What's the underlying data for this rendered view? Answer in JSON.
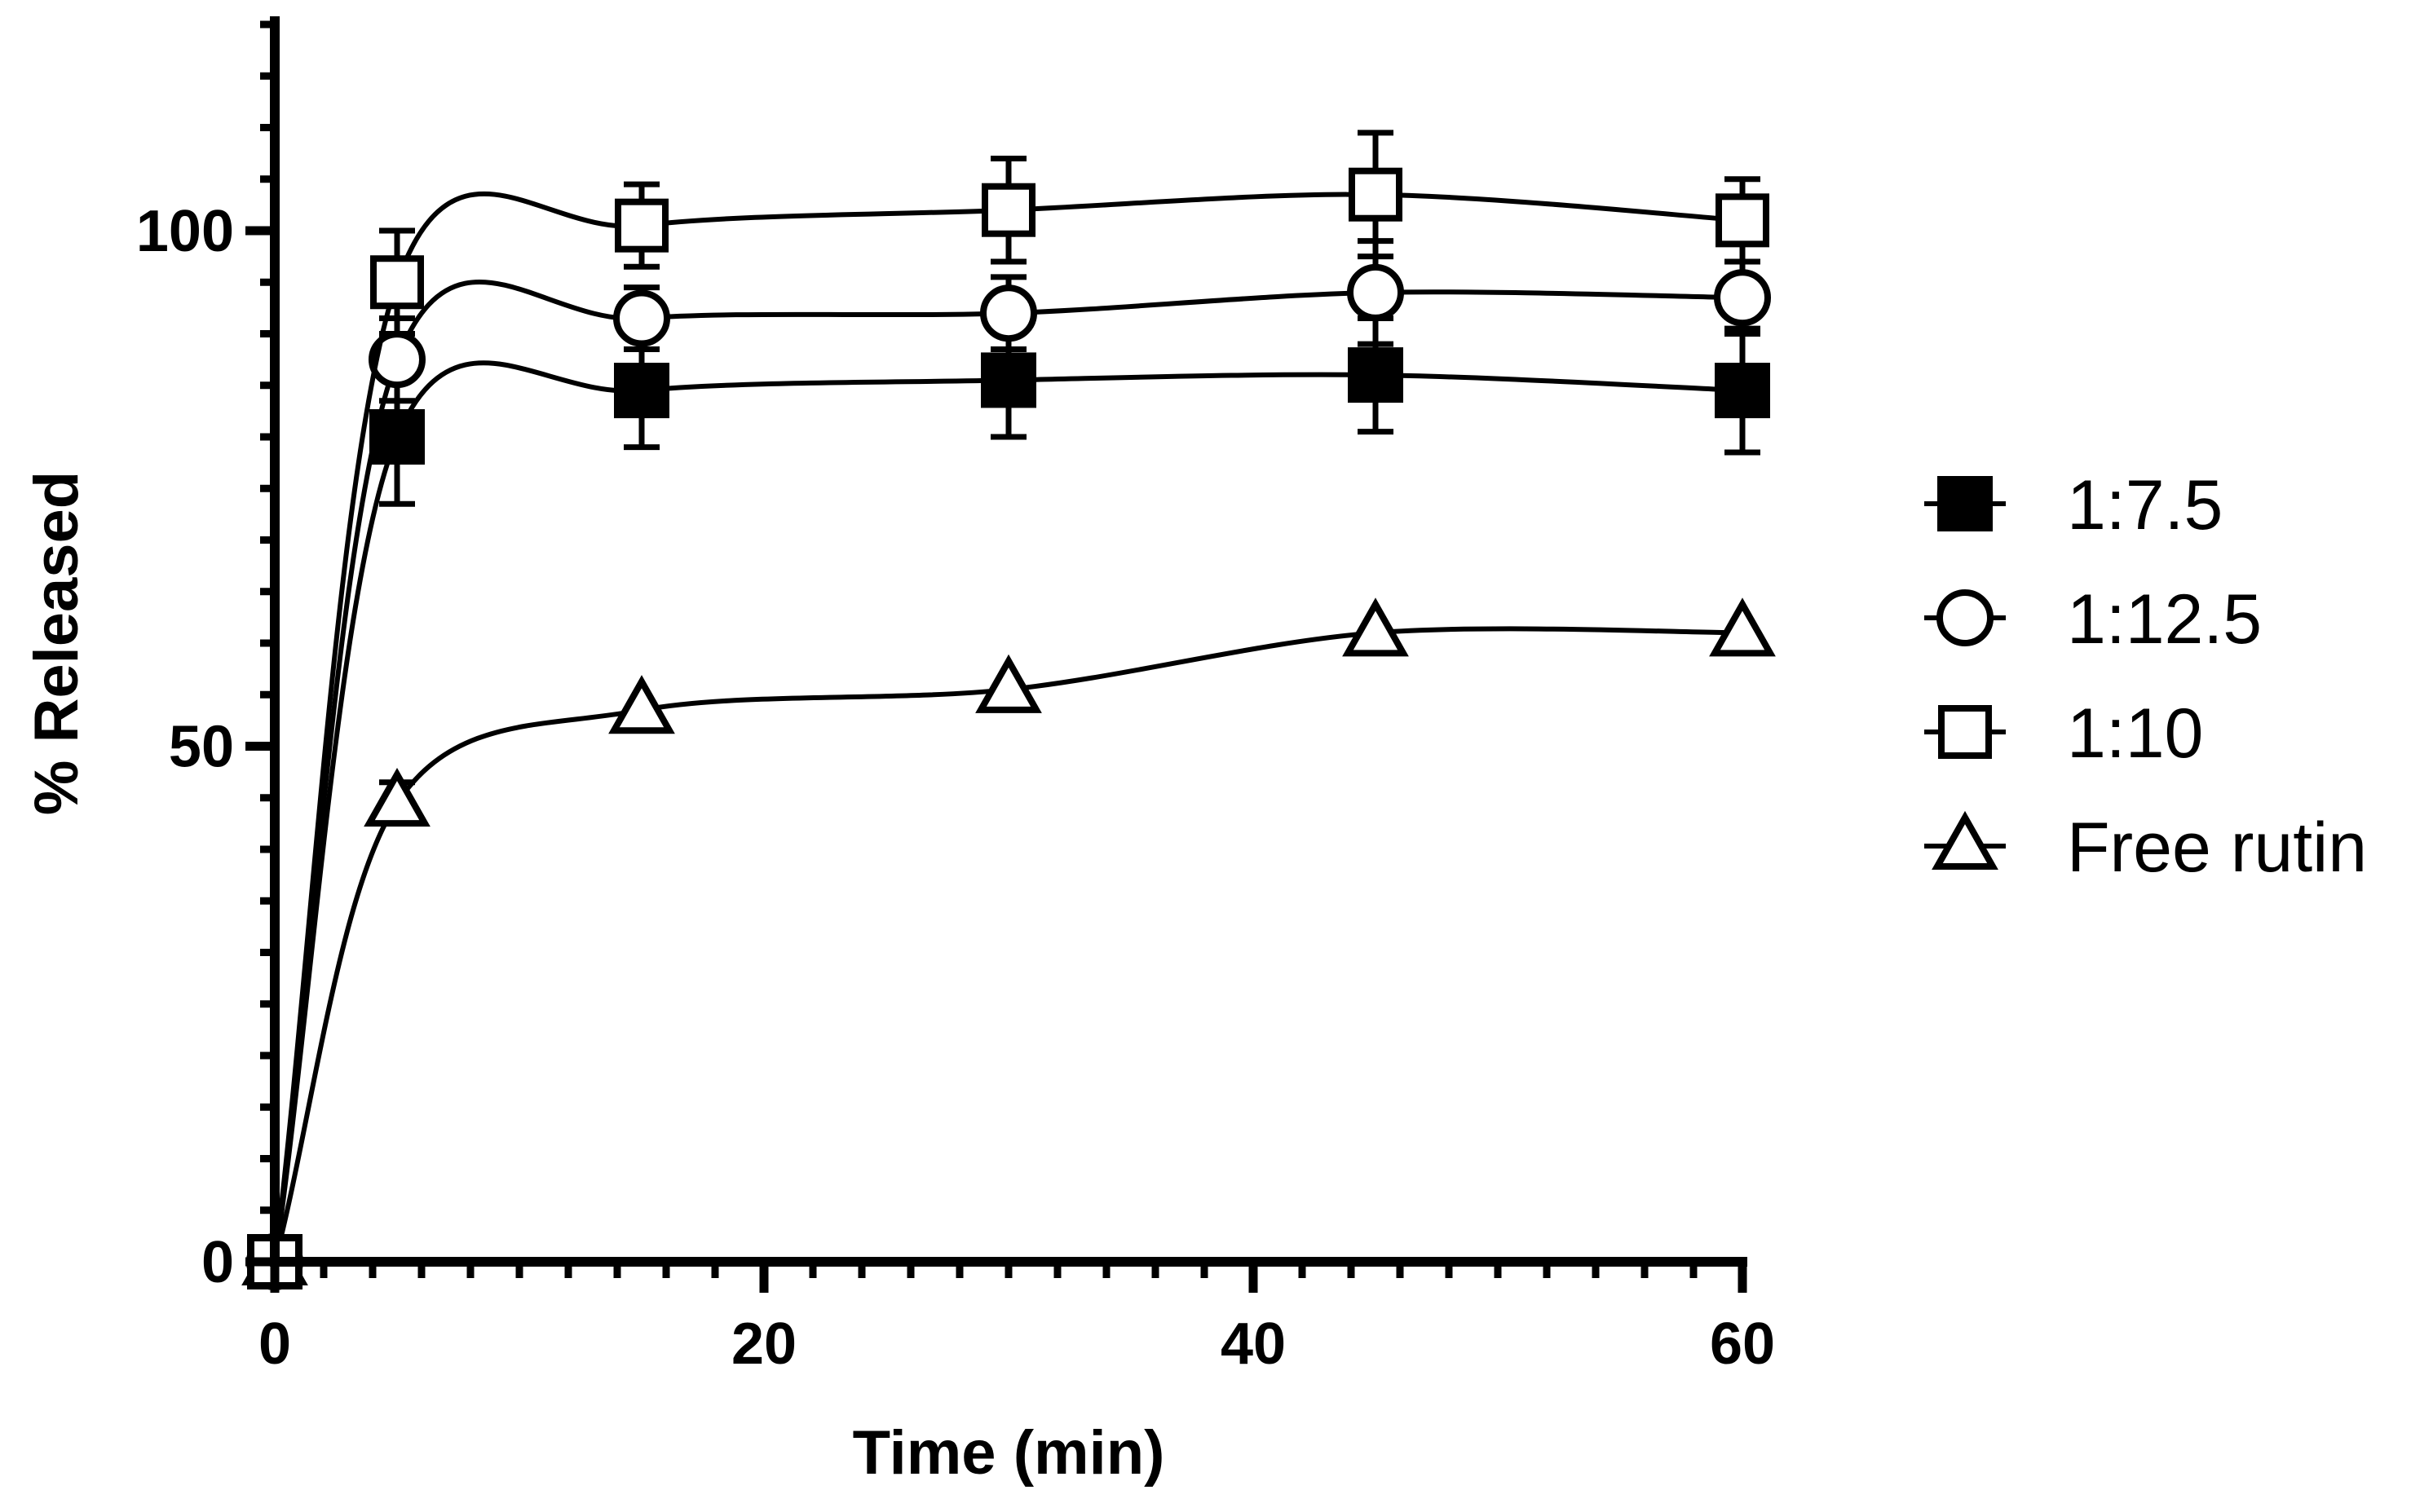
{
  "chart_data": {
    "type": "line",
    "title": "",
    "xlabel": "Time (min)",
    "ylabel": "% Released",
    "xlim": [
      0,
      60
    ],
    "ylim": [
      0,
      120
    ],
    "x_ticks": [
      0,
      20,
      40,
      60
    ],
    "x_tick_labels": [
      "0",
      "20",
      "40",
      "60"
    ],
    "y_ticks": [
      0,
      50,
      100
    ],
    "y_tick_labels": [
      "0",
      "50",
      "100"
    ],
    "x_minor_step": 2,
    "y_minor_step": 5,
    "grid": false,
    "legend_position": "right",
    "x": [
      0,
      5,
      15,
      30,
      45,
      60
    ],
    "series": [
      {
        "name": "1:7.5",
        "marker": "filled-square",
        "values": [
          0,
          80,
          84.5,
          85.5,
          86,
          84.5
        ],
        "errors": [
          0,
          6.5,
          5.5,
          5.5,
          5.5,
          6
        ]
      },
      {
        "name": "1:12.5",
        "marker": "open-circle",
        "values": [
          0,
          87.5,
          91.5,
          92,
          94,
          93.5
        ],
        "errors": [
          0,
          4,
          3,
          3.5,
          5,
          3.5
        ]
      },
      {
        "name": "1:10",
        "marker": "open-square",
        "values": [
          0,
          95,
          100.5,
          102,
          103.5,
          101
        ],
        "errors": [
          0,
          5,
          4,
          5,
          6,
          4
        ]
      },
      {
        "name": "Free rutin",
        "marker": "open-triangle",
        "values": [
          0,
          44.5,
          53.5,
          55.5,
          61,
          61
        ],
        "errors": [
          0,
          2,
          0,
          0,
          0,
          0
        ]
      }
    ]
  }
}
